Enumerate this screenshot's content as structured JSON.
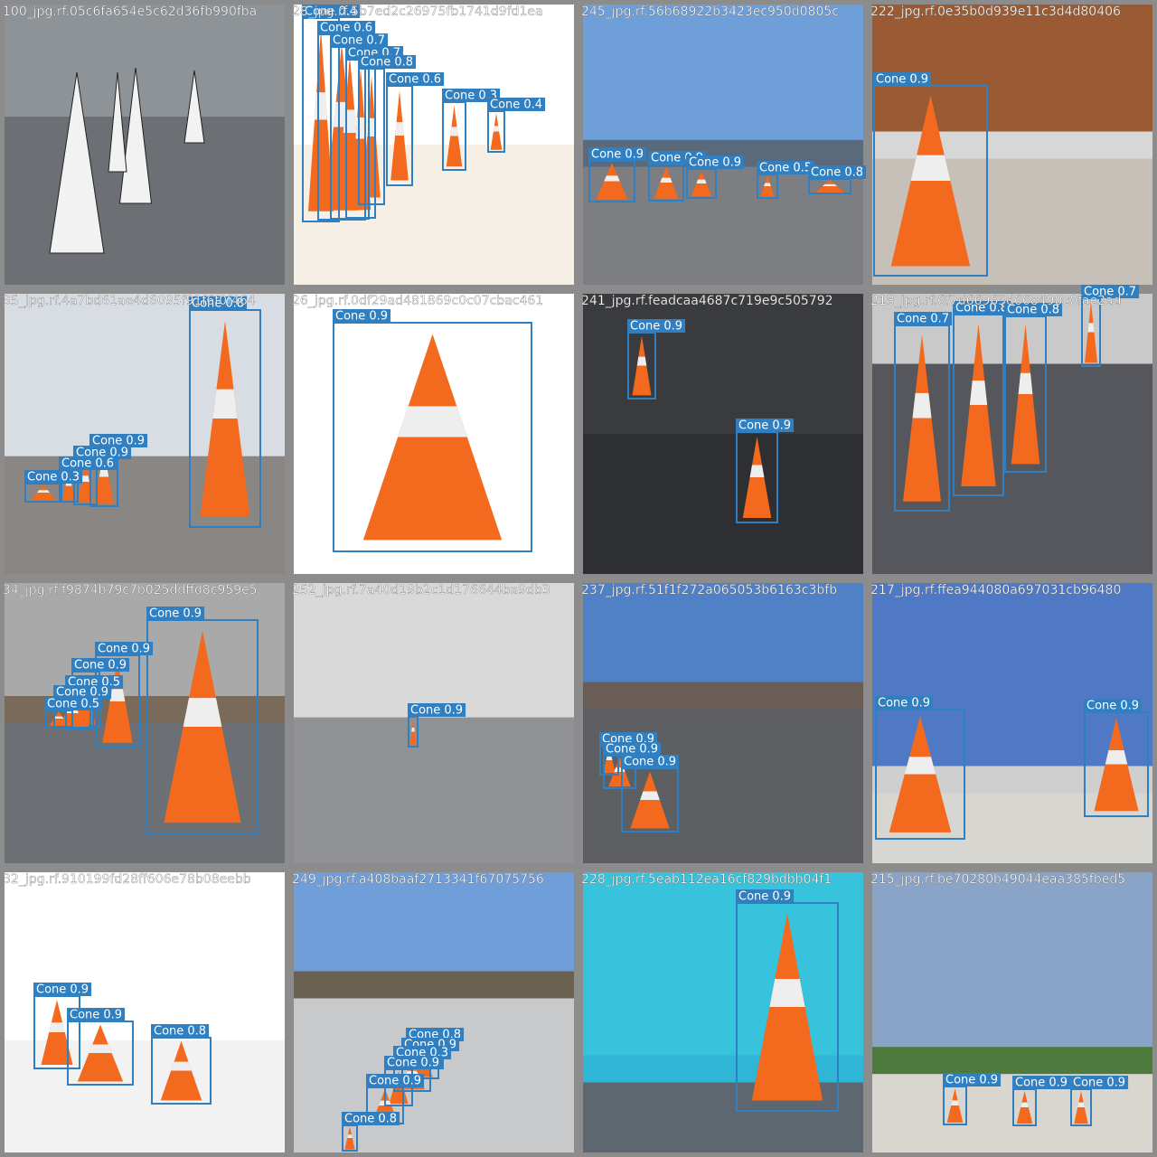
{
  "tiles": [
    {
      "filename": "100_jpg.rf.05c6fa654e5c62d36fb990fba",
      "detections": []
    },
    {
      "filename": "28_jpg.rf.5b7ed2c26975fb1741d9fd1ea",
      "detections": [
        "Cone 0.4",
        "Cone 0.6",
        "Cone 0.7",
        "Cone 0.7",
        "Cone 0.8",
        "Cone 0.6",
        "Cone 0.3",
        "Cone 0.4"
      ]
    },
    {
      "filename": "245_jpg.rf.56b68922b3423ec950d0805c",
      "detections": [
        "Cone 0.9",
        "Cone 0.9",
        "Cone 0.9",
        "Cone 0.5",
        "Cone 0.8"
      ]
    },
    {
      "filename": "222_jpg.rf.0e35b0d939e11c3d4d80406",
      "detections": [
        "Cone 0.9"
      ]
    },
    {
      "filename": "35_jpg.rf.4a7bd61ae4d6095f91f6f0f464",
      "detections": [
        "Cone 0.8",
        "Cone 0.9",
        "Cone 0.9",
        "Cone 0.6",
        "Cone 0.3"
      ]
    },
    {
      "filename": "26_jpg.rf.0df29ad481869c0c07cbac461",
      "detections": [
        "Cone 0.9"
      ]
    },
    {
      "filename": "241_jpg.rf.feadcaa4687c719e9c505792",
      "detections": [
        "Cone 0.9",
        "Cone 0.9"
      ]
    },
    {
      "filename": "218_jpg.rf.6f7d66963d668490c0fae2ad",
      "detections": [
        "Cone 0.7",
        "Cone 0.8",
        "Cone 0.8",
        "Cone 0.7"
      ]
    },
    {
      "filename": "34_jpg.rf.f9874b79c7b025ddffd8c959e5",
      "detections": [
        "Cone 0.9",
        "Cone 0.9",
        "Cone 0.9",
        "Cone 0.5",
        "Cone 0.9",
        "Cone 0.5"
      ]
    },
    {
      "filename": "252_jpg.rf.7a40d19b2c1d176644ba9db3",
      "detections": [
        "Cone 0.9"
      ]
    },
    {
      "filename": "237_jpg.rf.51f1f272a065053b6163c3bfb",
      "detections": [
        "Cone 0.9",
        "Cone 0.9",
        "Cone 0.9"
      ]
    },
    {
      "filename": "217_jpg.rf.ffea944080a697031cb96480",
      "detections": [
        "Cone 0.9",
        "Cone 0.9"
      ]
    },
    {
      "filename": "32_jpg.rf.910199fd28ff606e78b08eebb",
      "detections": [
        "Cone 0.9",
        "Cone 0.9",
        "Cone 0.8"
      ]
    },
    {
      "filename": "249_jpg.rf.a408baaf2713341f67075756",
      "detections": [
        "Cone 0.8",
        "Cone 0.9",
        "Cone 0.3",
        "Cone 0.9",
        "Cone 0.9",
        "Cone 0.8"
      ]
    },
    {
      "filename": "228_jpg.rf.5eab112ea16cf829bdbb04f1",
      "detections": [
        "Cone 0.9"
      ]
    },
    {
      "filename": "215_jpg.rf.be70280b49044eaa385fbed5",
      "detections": [
        "Cone 0.9",
        "Cone 0.9",
        "Cone 0.9"
      ]
    }
  ]
}
